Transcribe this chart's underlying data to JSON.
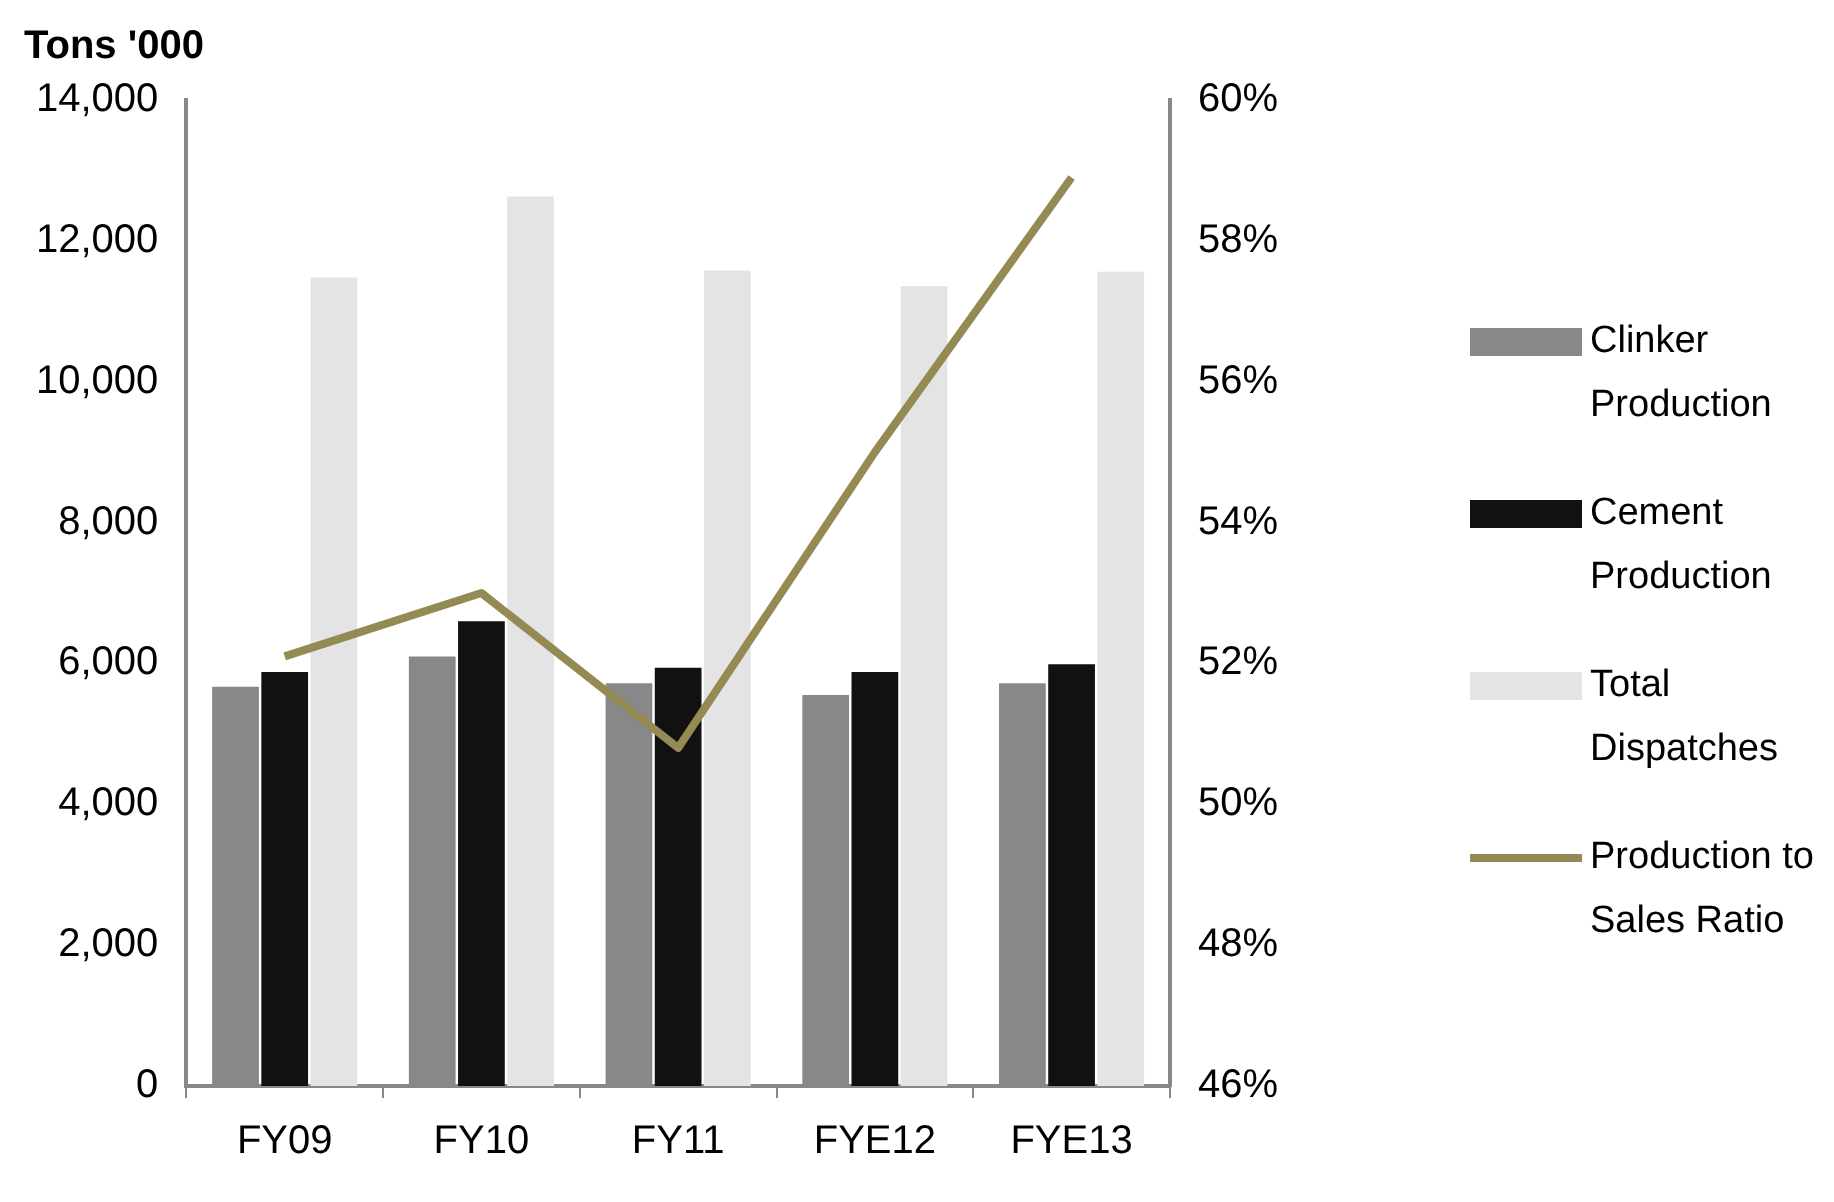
{
  "chart_data": {
    "type": "bar",
    "ylabel": "Tons '000",
    "categories": [
      "FY09",
      "FY10",
      "FY11",
      "FYE12",
      "FYE13"
    ],
    "series": [
      {
        "name": "Clinker Production",
        "color": "#888888",
        "values": [
          5670,
          6100,
          5720,
          5550,
          5720
        ]
      },
      {
        "name": "Cement Production",
        "color": "#111111",
        "values": [
          5880,
          6600,
          5940,
          5880,
          5990
        ]
      },
      {
        "name": "Total Dispatches",
        "color": "#e4e4e4",
        "values": [
          11480,
          12630,
          11580,
          11360,
          11560
        ]
      },
      {
        "name": "Production to Sales Ratio",
        "type": "line",
        "axis": "y2",
        "color": "#948a54",
        "values": [
          52.1,
          53.0,
          50.8,
          55.0,
          58.9
        ]
      }
    ],
    "ylim": [
      0,
      14000
    ],
    "yticks": [
      {
        "value": 0,
        "label": "0"
      },
      {
        "value": 2000,
        "label": "2,000"
      },
      {
        "value": 4000,
        "label": "4,000"
      },
      {
        "value": 6000,
        "label": "6,000"
      },
      {
        "value": 8000,
        "label": "8,000"
      },
      {
        "value": 10000,
        "label": "10,000"
      },
      {
        "value": 12000,
        "label": "12,000"
      },
      {
        "value": 14000,
        "label": "14,000"
      }
    ],
    "y2lim": [
      46,
      60
    ],
    "y2ticks": [
      {
        "value": 46,
        "label": "46%"
      },
      {
        "value": 48,
        "label": "48%"
      },
      {
        "value": 50,
        "label": "50%"
      },
      {
        "value": 52,
        "label": "52%"
      },
      {
        "value": 54,
        "label": "54%"
      },
      {
        "value": 56,
        "label": "56%"
      },
      {
        "value": 58,
        "label": "58%"
      },
      {
        "value": 60,
        "label": "60%"
      }
    ],
    "legend": "right",
    "marker": "none"
  }
}
